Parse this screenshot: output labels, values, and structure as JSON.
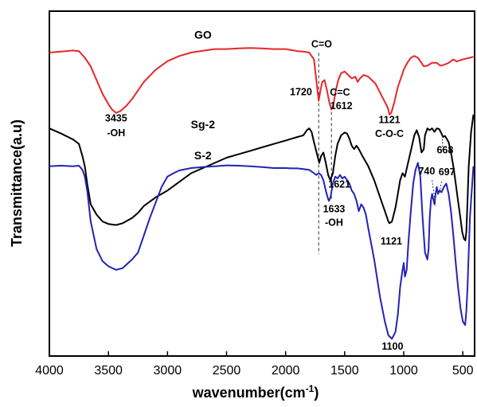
{
  "chart_data": {
    "type": "line",
    "xlabel": "wavenumber(cm",
    "xlabel_sup": "-1",
    "xlabel_suffix": ")",
    "ylabel": "Transmittance(a.u)",
    "xlim": [
      4000,
      400
    ],
    "x_ticks": [
      4000,
      3500,
      3000,
      2500,
      2000,
      1500,
      1000,
      500
    ],
    "x_tick_labels": [
      "4000",
      "3500",
      "3000",
      "2500",
      "2000",
      "1500",
      "1000",
      "500"
    ],
    "y_ticks_shown": false,
    "ylim": [
      0,
      100
    ],
    "grid": false,
    "series": [
      {
        "name": "GO",
        "color": "#e8262b",
        "points": [
          [
            4000,
            88
          ],
          [
            3900,
            88.3
          ],
          [
            3800,
            88.6
          ],
          [
            3750,
            88.4
          ],
          [
            3700,
            86.5
          ],
          [
            3650,
            84
          ],
          [
            3600,
            80
          ],
          [
            3550,
            76
          ],
          [
            3500,
            73
          ],
          [
            3470,
            71.5
          ],
          [
            3435,
            70.5
          ],
          [
            3400,
            71
          ],
          [
            3350,
            72.5
          ],
          [
            3300,
            74.5
          ],
          [
            3250,
            77
          ],
          [
            3200,
            79.5
          ],
          [
            3100,
            83
          ],
          [
            3000,
            85.5
          ],
          [
            2900,
            87
          ],
          [
            2800,
            88
          ],
          [
            2700,
            88.5
          ],
          [
            2600,
            89
          ],
          [
            2500,
            89
          ],
          [
            2400,
            89.2
          ],
          [
            2300,
            89.3
          ],
          [
            2200,
            89.2
          ],
          [
            2100,
            89
          ],
          [
            2000,
            89
          ],
          [
            1950,
            88.7
          ],
          [
            1900,
            88.4
          ],
          [
            1850,
            88.3
          ],
          [
            1800,
            88
          ],
          [
            1760,
            86
          ],
          [
            1740,
            80
          ],
          [
            1720,
            74
          ],
          [
            1705,
            77
          ],
          [
            1690,
            79.5
          ],
          [
            1670,
            80
          ],
          [
            1650,
            77
          ],
          [
            1630,
            73.5
          ],
          [
            1612,
            71.5
          ],
          [
            1595,
            73
          ],
          [
            1575,
            77
          ],
          [
            1555,
            80
          ],
          [
            1530,
            82
          ],
          [
            1500,
            82.5
          ],
          [
            1470,
            81.5
          ],
          [
            1440,
            80.5
          ],
          [
            1410,
            81
          ],
          [
            1390,
            79.5
          ],
          [
            1370,
            80.5
          ],
          [
            1340,
            81.5
          ],
          [
            1300,
            81
          ],
          [
            1270,
            80
          ],
          [
            1240,
            79
          ],
          [
            1210,
            77
          ],
          [
            1180,
            75
          ],
          [
            1150,
            73
          ],
          [
            1135,
            72
          ],
          [
            1121,
            70
          ],
          [
            1105,
            70.5
          ],
          [
            1080,
            73.5
          ],
          [
            1050,
            78
          ],
          [
            1000,
            83
          ],
          [
            970,
            85
          ],
          [
            940,
            86.5
          ],
          [
            910,
            87
          ],
          [
            880,
            86.5
          ],
          [
            850,
            85
          ],
          [
            830,
            84
          ],
          [
            800,
            84.2
          ],
          [
            760,
            85
          ],
          [
            720,
            85
          ],
          [
            690,
            84.2
          ],
          [
            660,
            84.4
          ],
          [
            620,
            85
          ],
          [
            580,
            86
          ],
          [
            550,
            85.4
          ],
          [
            520,
            85.8
          ],
          [
            480,
            86.2
          ],
          [
            440,
            86.5
          ],
          [
            410,
            86.8
          ]
        ]
      },
      {
        "name": "Sg-2",
        "color": "#000000",
        "points": [
          [
            4000,
            66
          ],
          [
            3900,
            64.5
          ],
          [
            3800,
            62.8
          ],
          [
            3750,
            61.5
          ],
          [
            3720,
            58
          ],
          [
            3700,
            55
          ],
          [
            3680,
            50
          ],
          [
            3650,
            44
          ],
          [
            3600,
            41
          ],
          [
            3550,
            39
          ],
          [
            3500,
            38.3
          ],
          [
            3435,
            38
          ],
          [
            3380,
            38.5
          ],
          [
            3300,
            40
          ],
          [
            3250,
            41.5
          ],
          [
            3200,
            43.5
          ],
          [
            3100,
            46
          ],
          [
            3000,
            48
          ],
          [
            2900,
            50.5
          ],
          [
            2800,
            53
          ],
          [
            2700,
            54.5
          ],
          [
            2600,
            56
          ],
          [
            2500,
            57.5
          ],
          [
            2400,
            58.5
          ],
          [
            2300,
            59.5
          ],
          [
            2200,
            60.5
          ],
          [
            2100,
            61.5
          ],
          [
            2000,
            62.5
          ],
          [
            1950,
            63
          ],
          [
            1900,
            63.5
          ],
          [
            1850,
            64
          ],
          [
            1820,
            65.5
          ],
          [
            1800,
            66
          ],
          [
            1780,
            65
          ],
          [
            1760,
            62
          ],
          [
            1745,
            60
          ],
          [
            1730,
            58
          ],
          [
            1715,
            56
          ],
          [
            1700,
            58
          ],
          [
            1680,
            59
          ],
          [
            1660,
            56
          ],
          [
            1640,
            52.5
          ],
          [
            1621,
            51
          ],
          [
            1600,
            53
          ],
          [
            1580,
            58
          ],
          [
            1560,
            61.5
          ],
          [
            1530,
            64
          ],
          [
            1500,
            64.8
          ],
          [
            1480,
            64.5
          ],
          [
            1460,
            63
          ],
          [
            1440,
            61
          ],
          [
            1420,
            60
          ],
          [
            1400,
            61
          ],
          [
            1380,
            60
          ],
          [
            1350,
            58
          ],
          [
            1300,
            55
          ],
          [
            1250,
            51
          ],
          [
            1200,
            46
          ],
          [
            1160,
            42
          ],
          [
            1130,
            39
          ],
          [
            1121,
            38.5
          ],
          [
            1100,
            39
          ],
          [
            1070,
            43
          ],
          [
            1050,
            47
          ],
          [
            1030,
            51
          ],
          [
            1010,
            53
          ],
          [
            990,
            52
          ],
          [
            970,
            55
          ],
          [
            950,
            58
          ],
          [
            930,
            61
          ],
          [
            910,
            64
          ],
          [
            890,
            65.5
          ],
          [
            870,
            63.5
          ],
          [
            850,
            59
          ],
          [
            830,
            60
          ],
          [
            820,
            64
          ],
          [
            800,
            66
          ],
          [
            780,
            65.5
          ],
          [
            760,
            66
          ],
          [
            740,
            65
          ],
          [
            720,
            66
          ],
          [
            700,
            65.8
          ],
          [
            680,
            64.5
          ],
          [
            668,
            63.5
          ],
          [
            650,
            63.8
          ],
          [
            620,
            62
          ],
          [
            600,
            59
          ],
          [
            580,
            55
          ],
          [
            560,
            50
          ],
          [
            540,
            45
          ],
          [
            520,
            40
          ],
          [
            505,
            36
          ],
          [
            490,
            34
          ],
          [
            478,
            33.5
          ],
          [
            470,
            36
          ],
          [
            460,
            45
          ],
          [
            450,
            55
          ],
          [
            430,
            65
          ],
          [
            410,
            70
          ]
        ]
      },
      {
        "name": "S-2",
        "color": "#2323b8",
        "points": [
          [
            4000,
            55
          ],
          [
            3900,
            55.2
          ],
          [
            3800,
            55
          ],
          [
            3750,
            55.2
          ],
          [
            3720,
            54
          ],
          [
            3700,
            52
          ],
          [
            3680,
            48
          ],
          [
            3650,
            39
          ],
          [
            3600,
            31
          ],
          [
            3550,
            27.5
          ],
          [
            3500,
            26
          ],
          [
            3435,
            25
          ],
          [
            3380,
            25.5
          ],
          [
            3300,
            28
          ],
          [
            3250,
            30
          ],
          [
            3200,
            35
          ],
          [
            3150,
            40
          ],
          [
            3100,
            44.5
          ],
          [
            3050,
            49
          ],
          [
            3000,
            52
          ],
          [
            2950,
            53
          ],
          [
            2900,
            53.8
          ],
          [
            2800,
            54.5
          ],
          [
            2700,
            54.8
          ],
          [
            2600,
            55
          ],
          [
            2500,
            55.3
          ],
          [
            2400,
            55.2
          ],
          [
            2300,
            55
          ],
          [
            2200,
            54.8
          ],
          [
            2100,
            54.5
          ],
          [
            2000,
            54.5
          ],
          [
            1950,
            54.4
          ],
          [
            1900,
            54.4
          ],
          [
            1850,
            54.2
          ],
          [
            1800,
            54
          ],
          [
            1780,
            53.5
          ],
          [
            1760,
            53
          ],
          [
            1740,
            52.5
          ],
          [
            1720,
            53
          ],
          [
            1700,
            52.5
          ],
          [
            1680,
            51
          ],
          [
            1660,
            48
          ],
          [
            1640,
            45.5
          ],
          [
            1633,
            45
          ],
          [
            1620,
            46
          ],
          [
            1600,
            50
          ],
          [
            1580,
            52
          ],
          [
            1560,
            51.5
          ],
          [
            1540,
            52.5
          ],
          [
            1520,
            51.5
          ],
          [
            1500,
            52
          ],
          [
            1480,
            51
          ],
          [
            1460,
            50
          ],
          [
            1440,
            48
          ],
          [
            1420,
            47
          ],
          [
            1400,
            45
          ],
          [
            1380,
            42
          ],
          [
            1360,
            44
          ],
          [
            1340,
            43
          ],
          [
            1320,
            41
          ],
          [
            1300,
            37
          ],
          [
            1250,
            28
          ],
          [
            1200,
            17
          ],
          [
            1160,
            10
          ],
          [
            1130,
            6
          ],
          [
            1100,
            5
          ],
          [
            1070,
            7
          ],
          [
            1050,
            12
          ],
          [
            1030,
            20
          ],
          [
            1010,
            25
          ],
          [
            1000,
            27
          ],
          [
            990,
            23
          ],
          [
            975,
            25
          ],
          [
            960,
            33
          ],
          [
            940,
            42
          ],
          [
            920,
            50
          ],
          [
            900,
            54
          ],
          [
            880,
            56
          ],
          [
            860,
            52
          ],
          [
            840,
            40
          ],
          [
            820,
            30
          ],
          [
            800,
            28
          ],
          [
            790,
            31
          ],
          [
            780,
            40
          ],
          [
            770,
            45
          ],
          [
            760,
            47
          ],
          [
            740,
            44
          ],
          [
            730,
            47
          ],
          [
            720,
            49
          ],
          [
            710,
            47
          ],
          [
            697,
            48
          ],
          [
            680,
            47.5
          ],
          [
            660,
            49
          ],
          [
            640,
            50
          ],
          [
            620,
            47
          ],
          [
            600,
            42
          ],
          [
            580,
            35
          ],
          [
            560,
            27
          ],
          [
            540,
            20
          ],
          [
            520,
            14
          ],
          [
            500,
            10
          ],
          [
            490,
            9.5
          ],
          [
            480,
            9
          ],
          [
            470,
            13
          ],
          [
            460,
            20
          ],
          [
            450,
            30
          ],
          [
            440,
            40
          ],
          [
            420,
            50
          ],
          [
            410,
            55
          ]
        ]
      }
    ],
    "annotations": [
      {
        "text": "3435",
        "x": 3435,
        "y": 68.0
      },
      {
        "text": "-OH",
        "x": 3435,
        "y": 63.7
      },
      {
        "text": "1720",
        "x": 1870,
        "y": 75.6
      },
      {
        "text": "C=O",
        "x": 1695,
        "y": 89.5
      },
      {
        "text": "C=C",
        "x": 1540,
        "y": 75.5
      },
      {
        "text": "1612",
        "x": 1528,
        "y": 71.6
      },
      {
        "text": "1121",
        "x": 1121,
        "y": 67.6
      },
      {
        "text": "C-O-C",
        "x": 1121,
        "y": 63.5
      },
      {
        "text": "668",
        "x": 650,
        "y": 58.8
      },
      {
        "text": "1621",
        "x": 1545,
        "y": 48.9
      },
      {
        "text": "740",
        "x": 805,
        "y": 52.7
      },
      {
        "text": "697",
        "x": 635,
        "y": 52.4
      },
      {
        "text": "1633",
        "x": 1590,
        "y": 41.7
      },
      {
        "text": "-OH",
        "x": 1590,
        "y": 37.8
      },
      {
        "text": "1121",
        "x": 1105,
        "y": 32.3
      },
      {
        "text": "1100",
        "x": 1095,
        "y": 1.9
      }
    ],
    "vertical_markers": [
      {
        "x": 1720,
        "y_from": 87.9,
        "y_to": 29.5
      },
      {
        "x": 1612,
        "y_from": 70.8,
        "y_to": 45.1
      }
    ],
    "leader_lines": [
      {
        "from": [
          760,
          51.0
        ],
        "to": [
          730,
          43.5
        ]
      },
      {
        "from": [
          680,
          50.6
        ],
        "to": [
          697,
          47.2
        ]
      },
      {
        "from": [
          670,
          59.7
        ],
        "to": [
          672,
          64.3
        ]
      }
    ]
  }
}
